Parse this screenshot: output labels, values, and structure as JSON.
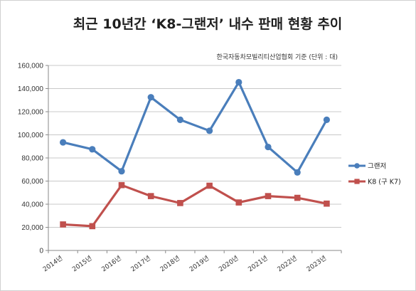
{
  "chart_data": {
    "type": "line",
    "title": "최근 10년간 ‘K8-그랜저’ 내수 판매 현황 추이",
    "source_note": "한국자동차모빌리티산업협회 기준 (단위 : 대)",
    "categories": [
      "2014년",
      "2015년",
      "2016년",
      "2017년",
      "2018년",
      "2019년",
      "2020년",
      "2021년",
      "2022년",
      "2023년"
    ],
    "series": [
      {
        "name": "그랜저",
        "color": "#4a7ebb",
        "marker": "circle",
        "values": [
          93500,
          87500,
          68500,
          132500,
          113000,
          103500,
          145500,
          89500,
          67500,
          113000
        ]
      },
      {
        "name": "K8 (구 K7)",
        "color": "#c0504d",
        "marker": "square",
        "values": [
          22500,
          21000,
          56500,
          47000,
          41000,
          56000,
          41500,
          47000,
          45500,
          40500
        ]
      }
    ],
    "ylim": [
      0,
      160000
    ],
    "yticks": [
      "0",
      "20,000",
      "40,000",
      "60,000",
      "80,000",
      "100,000",
      "120,000",
      "140,000",
      "160,000"
    ],
    "grid": true,
    "legend_position": "right"
  }
}
